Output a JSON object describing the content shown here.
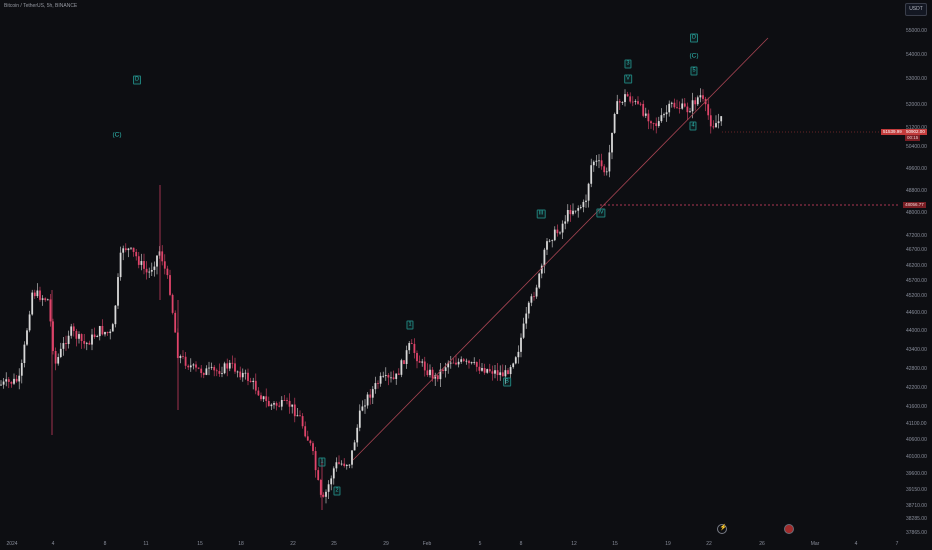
{
  "header": {
    "symbol_line": "Bitcoin / TetherUS, 5h, BINANCE"
  },
  "currency_selector": {
    "label": "USDT"
  },
  "price_axis": {
    "ticks": [
      "55000.00",
      "54000.00",
      "53000.00",
      "52000.00",
      "51200.00",
      "50400.00",
      "49600.00",
      "48800.00",
      "48000.00",
      "47200.00",
      "46700.00",
      "46200.00",
      "45700.00",
      "45200.00",
      "44600.00",
      "44000.00",
      "43400.00",
      "42800.00",
      "42200.00",
      "41600.00",
      "41100.00",
      "40600.00",
      "40100.00",
      "39600.00",
      "39150.00",
      "38710.00",
      "38285.00",
      "37865.00"
    ]
  },
  "time_axis": {
    "labels": [
      "2024",
      "4",
      "8",
      "11",
      "15",
      "18",
      "22",
      "25",
      "29",
      "Feb",
      "5",
      "8",
      "12",
      "15",
      "19",
      "22",
      "26",
      "Mar",
      "4",
      "7"
    ]
  },
  "wave_labels": [
    {
      "text": "D",
      "style": "box"
    },
    {
      "text": "(C)",
      "style": "plain"
    },
    {
      "text": "1",
      "style": "box"
    },
    {
      "text": "1",
      "style": "box"
    },
    {
      "text": "2",
      "style": "box"
    },
    {
      "text": "B",
      "style": "box"
    },
    {
      "text": "III",
      "style": "box"
    },
    {
      "text": "IV",
      "style": "box"
    },
    {
      "text": "3",
      "style": "box"
    },
    {
      "text": "V",
      "style": "box"
    },
    {
      "text": "D",
      "style": "box"
    },
    {
      "text": "(C)",
      "style": "plain"
    },
    {
      "text": "5",
      "style": "box"
    },
    {
      "text": "4",
      "style": "box"
    }
  ],
  "price_tags": {
    "last_price": "51539.99",
    "last_price_alt": "50902.00",
    "timer": "00:15",
    "level": "48056.77"
  },
  "colors": {
    "background": "#0d0e12",
    "candle_up": "#d8d8d8",
    "candle_down": "#e0446a",
    "trendline": "#a64452",
    "wave_label": "#2fbcb4"
  },
  "icons": {
    "lightning": "lightning-icon",
    "record": "record-icon"
  }
}
